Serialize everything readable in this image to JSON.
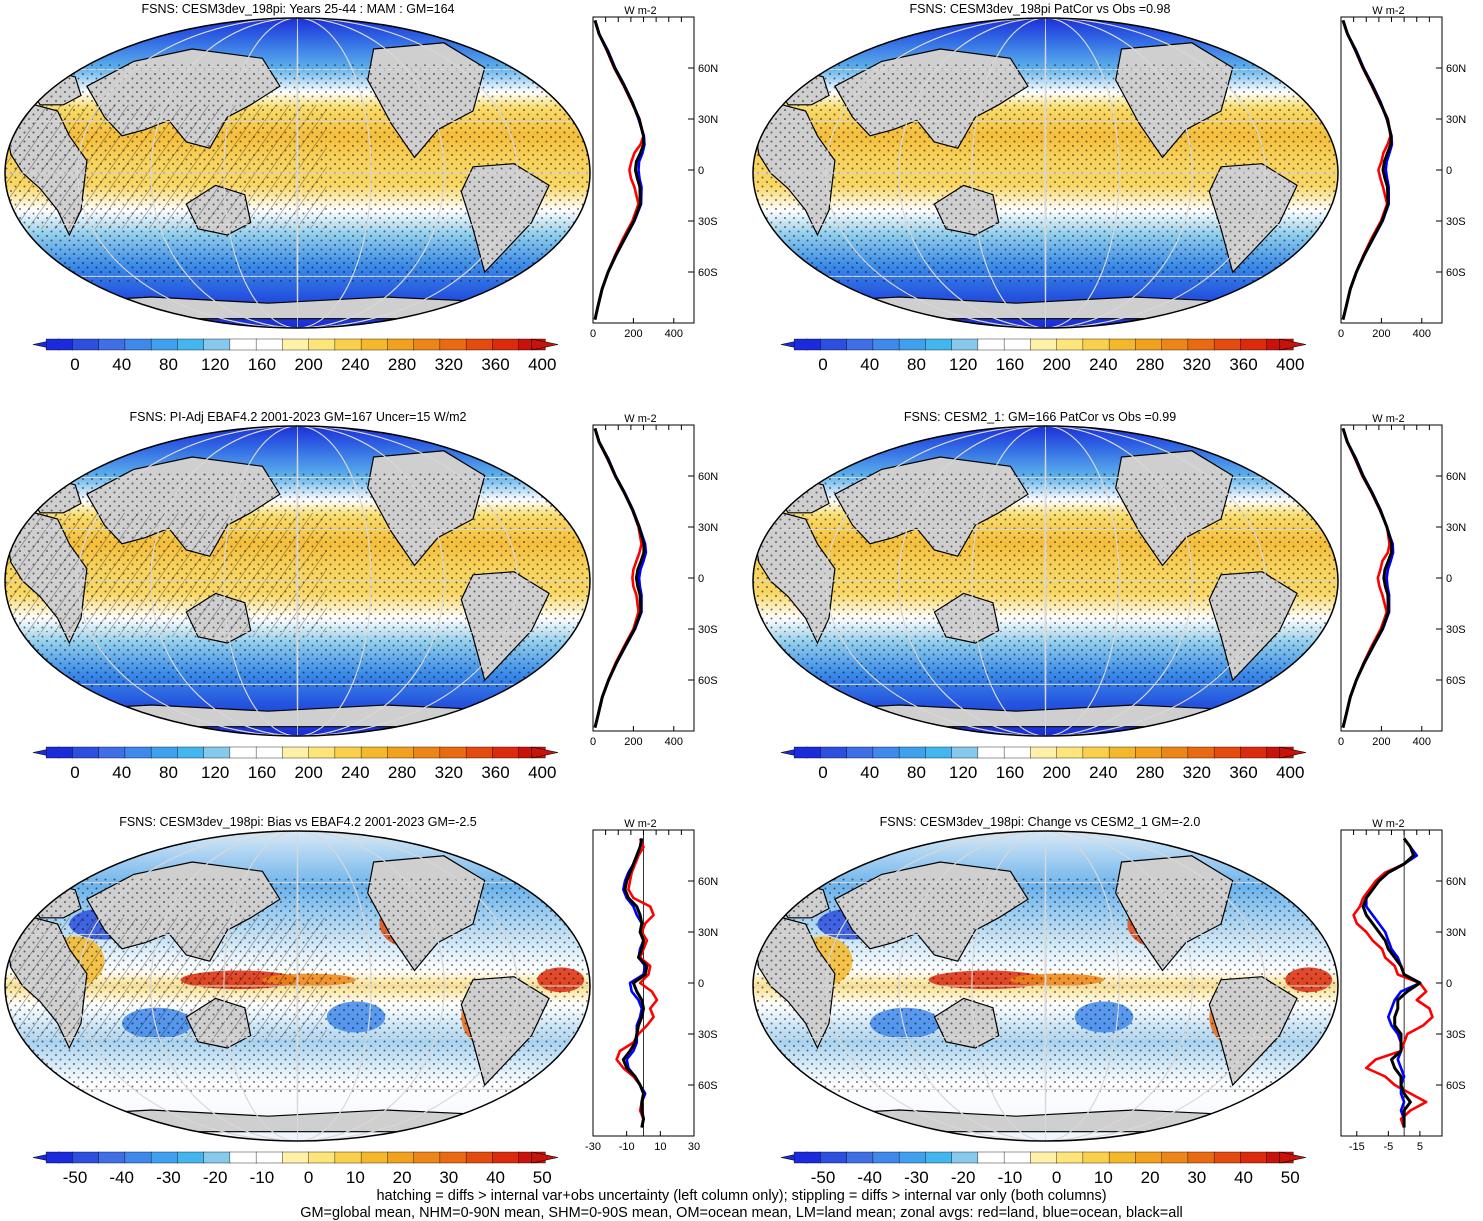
{
  "chart_data": {
    "type": "map_panels_with_zonal_profiles",
    "variable": "FSNS",
    "profile_unit": "W m-2",
    "latitude_ticks": [
      "60N",
      "30N",
      "0",
      "30S",
      "60S"
    ],
    "profile_series": [
      {
        "key": "land",
        "color": "#ff0000"
      },
      {
        "key": "ocean",
        "color": "#0000ff"
      },
      {
        "key": "all",
        "color": "#000000"
      }
    ],
    "panels": [
      {
        "title": "FSNS: CESM3dev_198pi: Years 25-44 : MAM : GM=164",
        "colorbar_ticks": [
          "0",
          "40",
          "80",
          "120",
          "160",
          "200",
          "240",
          "280",
          "320",
          "360",
          "400"
        ],
        "colorbar_colors": [
          "#1b2bdb",
          "#2d4fdf",
          "#3f6ee6",
          "#3f88ec",
          "#3ea0ee",
          "#43b6f0",
          "#86c9ec",
          "#ffffff",
          "#ffffff",
          "#fff1a8",
          "#fde57a",
          "#f9cf4c",
          "#f5b82a",
          "#f2a11f",
          "#ee8517",
          "#ea6a12",
          "#e44b0f",
          "#dc2a0c",
          "#c8120a"
        ],
        "profile_xticks": [
          "0",
          "200",
          "400"
        ],
        "profile_xlim": [
          0,
          500
        ],
        "profile_zero_line": false,
        "zonal": {
          "lat": [
            88,
            80,
            70,
            60,
            50,
            40,
            30,
            20,
            15,
            10,
            5,
            0,
            -5,
            -10,
            -20,
            -30,
            -40,
            -50,
            -60,
            -70,
            -80,
            -88
          ],
          "land": [
            10,
            30,
            70,
            105,
            150,
            190,
            230,
            250,
            235,
            205,
            190,
            180,
            188,
            205,
            225,
            195,
            150,
            110,
            75,
            45,
            25,
            10
          ],
          "ocean": [
            10,
            30,
            75,
            110,
            155,
            195,
            225,
            252,
            255,
            245,
            228,
            225,
            230,
            240,
            238,
            205,
            160,
            115,
            75,
            45,
            25,
            10
          ],
          "all": [
            10,
            30,
            72,
            108,
            153,
            193,
            228,
            250,
            250,
            235,
            215,
            210,
            220,
            232,
            234,
            203,
            158,
            114,
            75,
            45,
            25,
            10
          ]
        }
      },
      {
        "title": "FSNS: CESM3dev_198pi PatCor vs Obs =0.98",
        "colorbar_ticks": [
          "0",
          "40",
          "80",
          "120",
          "160",
          "200",
          "240",
          "280",
          "320",
          "360",
          "400"
        ],
        "colorbar_colors": [
          "#1b2bdb",
          "#2d4fdf",
          "#3f6ee6",
          "#3f88ec",
          "#3ea0ee",
          "#43b6f0",
          "#86c9ec",
          "#ffffff",
          "#ffffff",
          "#fff1a8",
          "#fde57a",
          "#f9cf4c",
          "#f5b82a",
          "#f2a11f",
          "#ee8517",
          "#ea6a12",
          "#e44b0f",
          "#dc2a0c",
          "#c8120a"
        ],
        "profile_xticks": [
          "0",
          "200",
          "400"
        ],
        "profile_xlim": [
          0,
          500
        ],
        "profile_zero_line": false,
        "zonal": {
          "lat": [
            88,
            80,
            70,
            60,
            50,
            40,
            30,
            20,
            15,
            10,
            5,
            0,
            -5,
            -10,
            -20,
            -30,
            -40,
            -50,
            -60,
            -70,
            -80,
            -88
          ],
          "land": [
            10,
            32,
            72,
            108,
            150,
            190,
            232,
            245,
            230,
            210,
            200,
            185,
            195,
            208,
            228,
            198,
            152,
            112,
            76,
            46,
            26,
            10
          ],
          "ocean": [
            10,
            32,
            76,
            112,
            156,
            196,
            226,
            250,
            252,
            240,
            226,
            222,
            228,
            236,
            236,
            206,
            161,
            116,
            76,
            46,
            26,
            10
          ],
          "all": [
            10,
            32,
            74,
            110,
            153,
            193,
            229,
            248,
            246,
            230,
            215,
            208,
            218,
            230,
            233,
            204,
            159,
            115,
            76,
            46,
            26,
            10
          ]
        }
      },
      {
        "title": "FSNS: PI-Adj EBAF4.2 2001-2023 GM=167 Uncer=15 W/m2",
        "colorbar_ticks": [
          "0",
          "40",
          "80",
          "120",
          "160",
          "200",
          "240",
          "280",
          "320",
          "360",
          "400"
        ],
        "colorbar_colors": [
          "#1b2bdb",
          "#2d4fdf",
          "#3f6ee6",
          "#3f88ec",
          "#3ea0ee",
          "#43b6f0",
          "#86c9ec",
          "#ffffff",
          "#ffffff",
          "#fff1a8",
          "#fde57a",
          "#f9cf4c",
          "#f5b82a",
          "#f2a11f",
          "#ee8517",
          "#ea6a12",
          "#e44b0f",
          "#dc2a0c",
          "#c8120a"
        ],
        "profile_xticks": [
          "0",
          "200",
          "400"
        ],
        "profile_xlim": [
          0,
          500
        ],
        "profile_zero_line": false,
        "zonal": {
          "lat": [
            88,
            80,
            70,
            60,
            50,
            40,
            30,
            20,
            15,
            10,
            5,
            0,
            -5,
            -10,
            -20,
            -30,
            -40,
            -50,
            -60,
            -70,
            -80,
            -88
          ],
          "land": [
            10,
            30,
            72,
            110,
            155,
            195,
            225,
            240,
            230,
            215,
            200,
            195,
            200,
            215,
            225,
            200,
            155,
            112,
            76,
            46,
            26,
            10
          ],
          "ocean": [
            10,
            30,
            76,
            112,
            158,
            198,
            230,
            258,
            262,
            250,
            235,
            228,
            232,
            240,
            240,
            208,
            162,
            117,
            77,
            46,
            26,
            10
          ],
          "all": [
            10,
            30,
            74,
            111,
            156,
            196,
            228,
            252,
            252,
            238,
            222,
            215,
            222,
            233,
            236,
            206,
            160,
            116,
            77,
            46,
            26,
            10
          ]
        }
      },
      {
        "title": "FSNS: CESM2_1: GM=166 PatCor vs Obs =0.99",
        "colorbar_ticks": [
          "0",
          "40",
          "80",
          "120",
          "160",
          "200",
          "240",
          "280",
          "320",
          "360",
          "400"
        ],
        "colorbar_colors": [
          "#1b2bdb",
          "#2d4fdf",
          "#3f6ee6",
          "#3f88ec",
          "#3ea0ee",
          "#43b6f0",
          "#86c9ec",
          "#ffffff",
          "#ffffff",
          "#fff1a8",
          "#fde57a",
          "#f9cf4c",
          "#f5b82a",
          "#f2a11f",
          "#ee8517",
          "#ea6a12",
          "#e44b0f",
          "#dc2a0c",
          "#c8120a"
        ],
        "profile_xticks": [
          "0",
          "200",
          "400"
        ],
        "profile_xlim": [
          0,
          500
        ],
        "profile_zero_line": false,
        "zonal": {
          "lat": [
            88,
            80,
            70,
            60,
            50,
            40,
            30,
            20,
            15,
            10,
            5,
            0,
            -5,
            -10,
            -20,
            -30,
            -40,
            -50,
            -60,
            -70,
            -80,
            -88
          ],
          "land": [
            10,
            31,
            70,
            106,
            152,
            192,
            228,
            240,
            232,
            205,
            195,
            182,
            190,
            205,
            226,
            197,
            152,
            112,
            76,
            46,
            26,
            10
          ],
          "ocean": [
            10,
            31,
            75,
            111,
            156,
            196,
            226,
            256,
            258,
            246,
            232,
            226,
            230,
            238,
            238,
            207,
            161,
            116,
            76,
            46,
            26,
            10
          ],
          "all": [
            10,
            31,
            73,
            109,
            154,
            194,
            227,
            250,
            250,
            234,
            218,
            212,
            220,
            232,
            234,
            205,
            159,
            115,
            76,
            46,
            26,
            10
          ]
        }
      },
      {
        "title": "FSNS: CESM3dev_198pi: Bias vs EBAF4.2 2001-2023 GM=-2.5",
        "colorbar_ticks": [
          "-50",
          "-40",
          "-30",
          "-20",
          "-10",
          "0",
          "10",
          "20",
          "30",
          "40",
          "50"
        ],
        "colorbar_colors": [
          "#1b2bdb",
          "#2d4fdf",
          "#3f6ee6",
          "#3f88ec",
          "#3ea0ee",
          "#43b6f0",
          "#86c9ec",
          "#ffffff",
          "#ffffff",
          "#fff1a8",
          "#fde57a",
          "#f9cf4c",
          "#f5b82a",
          "#f2a11f",
          "#ee8517",
          "#ea6a12",
          "#e44b0f",
          "#dc2a0c",
          "#c8120a"
        ],
        "profile_xticks": [
          "-30",
          "-10",
          "10",
          "30"
        ],
        "profile_xlim": [
          -30,
          30
        ],
        "profile_zero_line": true,
        "zonal": {
          "lat": [
            85,
            80,
            75,
            70,
            65,
            60,
            55,
            50,
            45,
            40,
            35,
            30,
            25,
            20,
            15,
            10,
            5,
            0,
            -5,
            -10,
            -15,
            -20,
            -25,
            -30,
            -35,
            -40,
            -45,
            -50,
            -55,
            -60,
            -65,
            -70,
            -75,
            -80,
            -85
          ],
          "land": [
            -2,
            0,
            -3,
            -5,
            -7,
            -8,
            -9,
            -6,
            4,
            6,
            1,
            -1,
            2,
            0,
            -2,
            4,
            3,
            -2,
            5,
            8,
            4,
            6,
            2,
            -3,
            -6,
            -14,
            -16,
            -12,
            -6,
            -2,
            0,
            -1,
            -2,
            0,
            -1
          ],
          "ocean": [
            -1,
            -2,
            -4,
            -6,
            -9,
            -11,
            -12,
            -10,
            -6,
            -4,
            -1,
            -2,
            0,
            -2,
            -3,
            1,
            0,
            -8,
            -7,
            -3,
            -1,
            -2,
            -4,
            -4,
            -4,
            -6,
            -10,
            -9,
            -5,
            -2,
            1,
            -1,
            -1,
            0,
            -1
          ],
          "all": [
            -1,
            -2,
            -4,
            -6,
            -8,
            -10,
            -11,
            -9,
            -4,
            -2,
            -1,
            -2,
            0,
            -1,
            -3,
            2,
            1,
            -6,
            -4,
            -1,
            0,
            -1,
            -3,
            -4,
            -5,
            -8,
            -12,
            -10,
            -5,
            -2,
            0,
            -1,
            -1,
            0,
            -1
          ]
        }
      },
      {
        "title": "FSNS: CESM3dev_198pi: Change vs CESM2_1 GM=-2.0",
        "colorbar_ticks": [
          "-50",
          "-40",
          "-30",
          "-20",
          "-10",
          "0",
          "10",
          "20",
          "30",
          "40",
          "50"
        ],
        "colorbar_colors": [
          "#1b2bdb",
          "#2d4fdf",
          "#3f6ee6",
          "#3f88ec",
          "#3ea0ee",
          "#43b6f0",
          "#86c9ec",
          "#ffffff",
          "#ffffff",
          "#fff1a8",
          "#fde57a",
          "#f9cf4c",
          "#f5b82a",
          "#f2a11f",
          "#ee8517",
          "#ea6a12",
          "#e44b0f",
          "#dc2a0c",
          "#c8120a"
        ],
        "profile_xticks": [
          "-15",
          "-5",
          "5"
        ],
        "profile_xlim": [
          -20,
          12
        ],
        "profile_zero_line": true,
        "zonal": {
          "lat": [
            85,
            80,
            75,
            70,
            65,
            60,
            55,
            50,
            45,
            40,
            35,
            30,
            25,
            20,
            15,
            10,
            5,
            0,
            -5,
            -10,
            -15,
            -20,
            -25,
            -30,
            -35,
            -40,
            -45,
            -50,
            -55,
            -60,
            -65,
            -70,
            -75,
            -80,
            -85
          ],
          "land": [
            0,
            2,
            3,
            0,
            -6,
            -9,
            -11,
            -13,
            -14,
            -16,
            -15,
            -12,
            -10,
            -7,
            -6,
            -3,
            -2,
            5,
            7,
            4,
            8,
            9,
            6,
            1,
            0,
            -1,
            -9,
            -12,
            -6,
            -3,
            2,
            7,
            2,
            -1,
            0
          ],
          "ocean": [
            0,
            2,
            4,
            0,
            -5,
            -8,
            -10,
            -12,
            -12,
            -10,
            -8,
            -6,
            -5,
            -4,
            -2,
            -1,
            0,
            5,
            -1,
            -3,
            -4,
            -5,
            -4,
            -2,
            -1,
            -1,
            -2,
            -1,
            0,
            -1,
            -1,
            0,
            -1,
            0,
            0
          ],
          "all": [
            0,
            2,
            3,
            0,
            -5,
            -8,
            -10,
            -12,
            -13,
            -12,
            -10,
            -8,
            -6,
            -5,
            -3,
            -1,
            0,
            5,
            1,
            -2,
            -2,
            -3,
            -3,
            -1,
            -1,
            -1,
            -4,
            -3,
            -1,
            -1,
            0,
            2,
            0,
            0,
            0
          ]
        }
      }
    ],
    "footer": [
      "hatching = diffs > internal var+obs uncertainty (left column only); stippling = diffs > internal var only (both columns)",
      "GM=global mean, NHM=0-90N mean, SHM=0-90S mean, OM=ocean mean, LM=land mean; zonal avgs: red=land, blue=ocean, black=all"
    ]
  }
}
